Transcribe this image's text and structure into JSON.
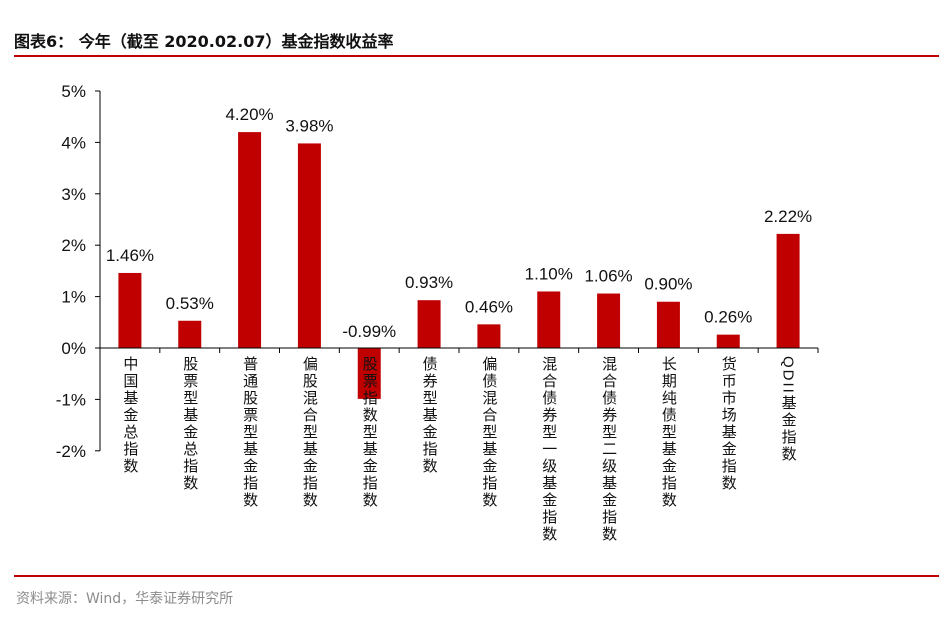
{
  "header": {
    "title": "图表6： 今年（截至 2020.02.07）基金指数收益率"
  },
  "footer": {
    "source": "资料来源：Wind，华泰证券研究所"
  },
  "colors": {
    "bar": "#c00000",
    "rule": "#c00000",
    "axis": "#000000",
    "text": "#111111"
  },
  "chart_data": {
    "type": "bar",
    "title": "今年（截至 2020.02.07）基金指数收益率",
    "xlabel": "",
    "ylabel": "",
    "ylim": [
      -2,
      5
    ],
    "yticks": [
      "5%",
      "4%",
      "3%",
      "2%",
      "1%",
      "0%",
      "-1%",
      "-2%"
    ],
    "grid": false,
    "categories": [
      "中国基金总指数",
      "股票型基金总指数",
      "普通股票型基金指数",
      "偏股混合型基金指数",
      "股票指数型基金指数",
      "债券型基金指数",
      "偏债混合型基金指数",
      "混合债券型一级基金指数",
      "混合债券型二级基金指数",
      "长期纯债型基金指数",
      "货币市场基金指数",
      "QDII基金指数"
    ],
    "values": [
      1.46,
      0.53,
      4.2,
      3.98,
      -0.99,
      0.93,
      0.46,
      1.1,
      1.06,
      0.9,
      0.26,
      2.22
    ],
    "value_labels": [
      "1.46%",
      "0.53%",
      "4.20%",
      "3.98%",
      "-0.99%",
      "0.93%",
      "0.46%",
      "1.10%",
      "1.06%",
      "0.90%",
      "0.26%",
      "2.22%"
    ]
  }
}
